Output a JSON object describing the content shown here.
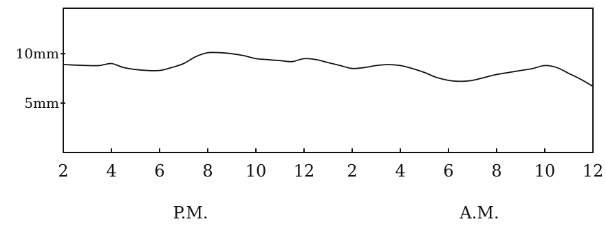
{
  "chart_data": {
    "type": "line",
    "title": "",
    "xlabel": "",
    "ylabel": "",
    "x_tick_labels": [
      "2",
      "4",
      "6",
      "8",
      "10",
      "12",
      "2",
      "4",
      "6",
      "8",
      "10",
      "12"
    ],
    "y_ticks": [
      {
        "value": 10,
        "label": "10mm"
      },
      {
        "value": 5,
        "label": "5mm"
      }
    ],
    "period_labels": [
      {
        "label": "P.M.",
        "at_hour": 7
      },
      {
        "label": "A.M.",
        "at_hour": 19
      }
    ],
    "xlim": [
      2,
      24
    ],
    "ylim": [
      0,
      14.6
    ],
    "grid": false,
    "series": [
      {
        "x": [
          2,
          3,
          3.5,
          4,
          4.5,
          5,
          5.5,
          6,
          6.5,
          7,
          7.5,
          8,
          8.5,
          9,
          9.5,
          10,
          10.5,
          11,
          11.5,
          12,
          12.5,
          13,
          13.5,
          14,
          14.5,
          15,
          15.5,
          16,
          16.5,
          17,
          17.5,
          18,
          18.5,
          19,
          19.5,
          20,
          20.5,
          21,
          21.5,
          22,
          22.5,
          23,
          23.5,
          24
        ],
        "values": [
          8.9,
          8.8,
          8.8,
          9.0,
          8.6,
          8.4,
          8.3,
          8.3,
          8.6,
          9.0,
          9.7,
          10.1,
          10.1,
          10.0,
          9.8,
          9.5,
          9.4,
          9.3,
          9.2,
          9.5,
          9.4,
          9.1,
          8.8,
          8.5,
          8.6,
          8.8,
          8.9,
          8.8,
          8.5,
          8.1,
          7.6,
          7.3,
          7.2,
          7.3,
          7.6,
          7.9,
          8.1,
          8.3,
          8.5,
          8.8,
          8.6,
          8.0,
          7.4,
          6.7
        ]
      }
    ]
  }
}
